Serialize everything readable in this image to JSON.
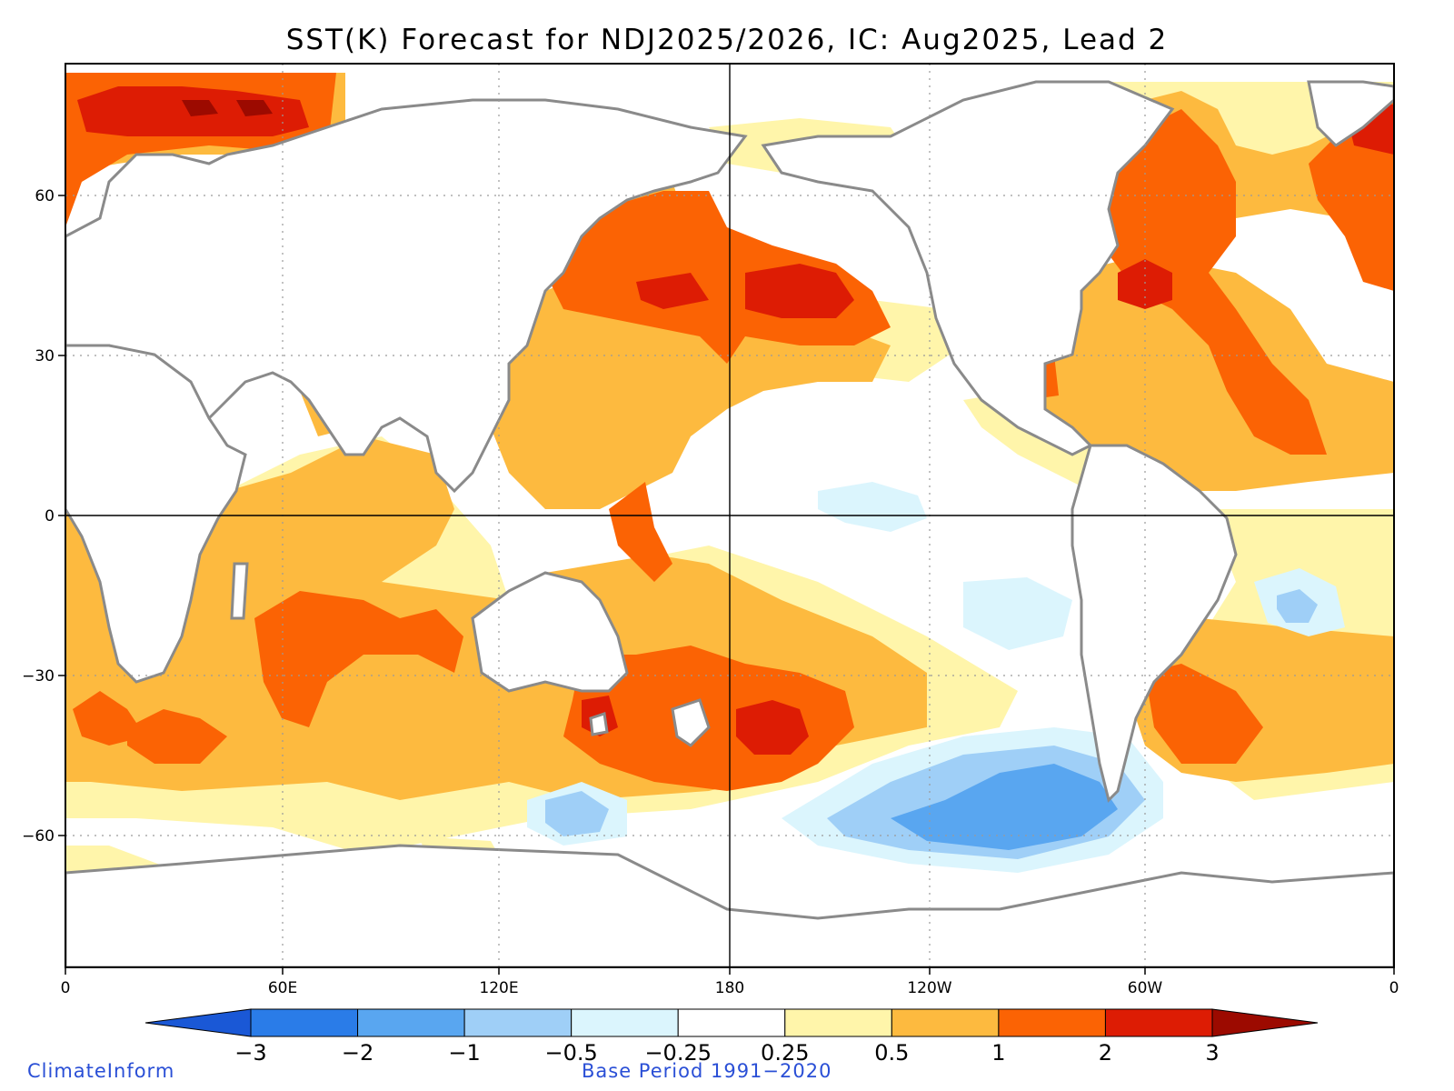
{
  "title": "SST(K) Forecast for NDJ2025/2026, IC: Aug2025, Lead 2",
  "x_ticks": [
    "0",
    "60E",
    "120E",
    "180",
    "120W",
    "60W",
    "0"
  ],
  "y_ticks": [
    "60",
    "30",
    "0",
    "−30",
    "−60"
  ],
  "colorbar": {
    "labels": [
      "−3",
      "−2",
      "−1",
      "−0.5",
      "−0.25",
      "0.25",
      "0.5",
      "1",
      "2",
      "3"
    ],
    "colors": [
      "#1a58d6",
      "#2a7ce8",
      "#59a6f0",
      "#9fcff7",
      "#dbf5fd",
      "#ffffff",
      "#fff5aa",
      "#fdba3f",
      "#fb6304",
      "#dd1c04",
      "#9c0a00"
    ]
  },
  "credit": "ClimateInform",
  "base_period": "Base Period 1991−2020"
}
